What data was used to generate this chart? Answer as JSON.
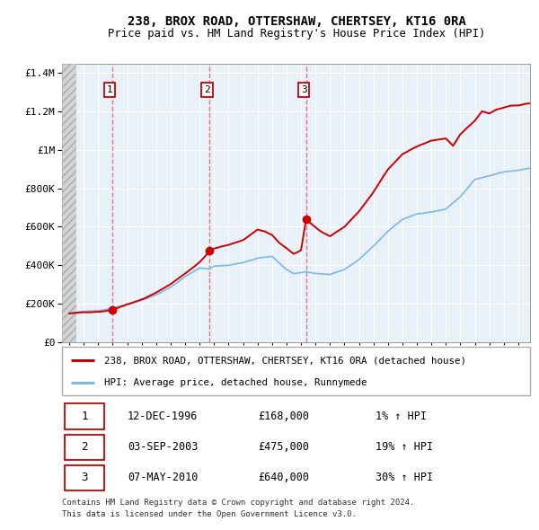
{
  "title1": "238, BROX ROAD, OTTERSHAW, CHERTSEY, KT16 0RA",
  "title2": "Price paid vs. HM Land Registry's House Price Index (HPI)",
  "legend_line1": "238, BROX ROAD, OTTERSHAW, CHERTSEY, KT16 0RA (detached house)",
  "legend_line2": "HPI: Average price, detached house, Runnymede",
  "transactions": [
    {
      "num": 1,
      "date": "12-DEC-1996",
      "price": 168000,
      "pct": "1%",
      "year": 1996.95
    },
    {
      "num": 2,
      "date": "03-SEP-2003",
      "price": 475000,
      "pct": "19%",
      "year": 2003.67
    },
    {
      "num": 3,
      "date": "07-MAY-2010",
      "price": 640000,
      "pct": "30%",
      "year": 2010.35
    }
  ],
  "footnote1": "Contains HM Land Registry data © Crown copyright and database right 2024.",
  "footnote2": "This data is licensed under the Open Government Licence v3.0.",
  "hpi_color": "#7ab8e8",
  "price_color": "#cc0000",
  "vline_color": "#dd6666",
  "chart_bg": "#e8f0f8",
  "ylim": [
    0,
    1450000
  ],
  "xlim_start": 1993.5,
  "xlim_end": 2025.8,
  "yticks": [
    0,
    200000,
    400000,
    600000,
    800000,
    1000000,
    1200000,
    1400000
  ],
  "hpi_seed_points": [
    [
      1994.0,
      148000
    ],
    [
      1995.0,
      158000
    ],
    [
      1996.0,
      162000
    ],
    [
      1997.0,
      175000
    ],
    [
      1998.0,
      192000
    ],
    [
      1999.0,
      215000
    ],
    [
      2000.0,
      245000
    ],
    [
      2001.0,
      285000
    ],
    [
      2002.0,
      340000
    ],
    [
      2003.0,
      385000
    ],
    [
      2003.67,
      380000
    ],
    [
      2004.0,
      395000
    ],
    [
      2005.0,
      400000
    ],
    [
      2006.0,
      415000
    ],
    [
      2007.0,
      440000
    ],
    [
      2008.0,
      450000
    ],
    [
      2009.0,
      380000
    ],
    [
      2009.5,
      360000
    ],
    [
      2010.0,
      365000
    ],
    [
      2010.35,
      370000
    ],
    [
      2011.0,
      360000
    ],
    [
      2012.0,
      355000
    ],
    [
      2013.0,
      380000
    ],
    [
      2014.0,
      430000
    ],
    [
      2015.0,
      500000
    ],
    [
      2016.0,
      580000
    ],
    [
      2017.0,
      640000
    ],
    [
      2018.0,
      670000
    ],
    [
      2019.0,
      680000
    ],
    [
      2020.0,
      695000
    ],
    [
      2021.0,
      760000
    ],
    [
      2022.0,
      850000
    ],
    [
      2023.0,
      870000
    ],
    [
      2024.0,
      890000
    ],
    [
      2025.0,
      900000
    ],
    [
      2025.8,
      910000
    ]
  ],
  "price_seed_points": [
    [
      1994.0,
      148000
    ],
    [
      1995.0,
      153000
    ],
    [
      1996.0,
      158000
    ],
    [
      1996.95,
      168000
    ],
    [
      1997.5,
      185000
    ],
    [
      1998.0,
      200000
    ],
    [
      1999.0,
      225000
    ],
    [
      2000.0,
      260000
    ],
    [
      2001.0,
      305000
    ],
    [
      2002.0,
      360000
    ],
    [
      2003.0,
      420000
    ],
    [
      2003.67,
      475000
    ],
    [
      2004.0,
      490000
    ],
    [
      2005.0,
      510000
    ],
    [
      2006.0,
      535000
    ],
    [
      2007.0,
      590000
    ],
    [
      2007.5,
      580000
    ],
    [
      2008.0,
      560000
    ],
    [
      2008.5,
      520000
    ],
    [
      2009.0,
      490000
    ],
    [
      2009.5,
      460000
    ],
    [
      2010.0,
      480000
    ],
    [
      2010.35,
      640000
    ],
    [
      2011.0,
      600000
    ],
    [
      2011.5,
      570000
    ],
    [
      2012.0,
      550000
    ],
    [
      2013.0,
      600000
    ],
    [
      2014.0,
      680000
    ],
    [
      2015.0,
      780000
    ],
    [
      2016.0,
      900000
    ],
    [
      2017.0,
      980000
    ],
    [
      2018.0,
      1020000
    ],
    [
      2019.0,
      1050000
    ],
    [
      2020.0,
      1060000
    ],
    [
      2020.5,
      1020000
    ],
    [
      2021.0,
      1080000
    ],
    [
      2022.0,
      1150000
    ],
    [
      2022.5,
      1200000
    ],
    [
      2023.0,
      1190000
    ],
    [
      2023.5,
      1210000
    ],
    [
      2024.0,
      1220000
    ],
    [
      2024.5,
      1230000
    ],
    [
      2025.0,
      1230000
    ],
    [
      2025.8,
      1240000
    ]
  ]
}
